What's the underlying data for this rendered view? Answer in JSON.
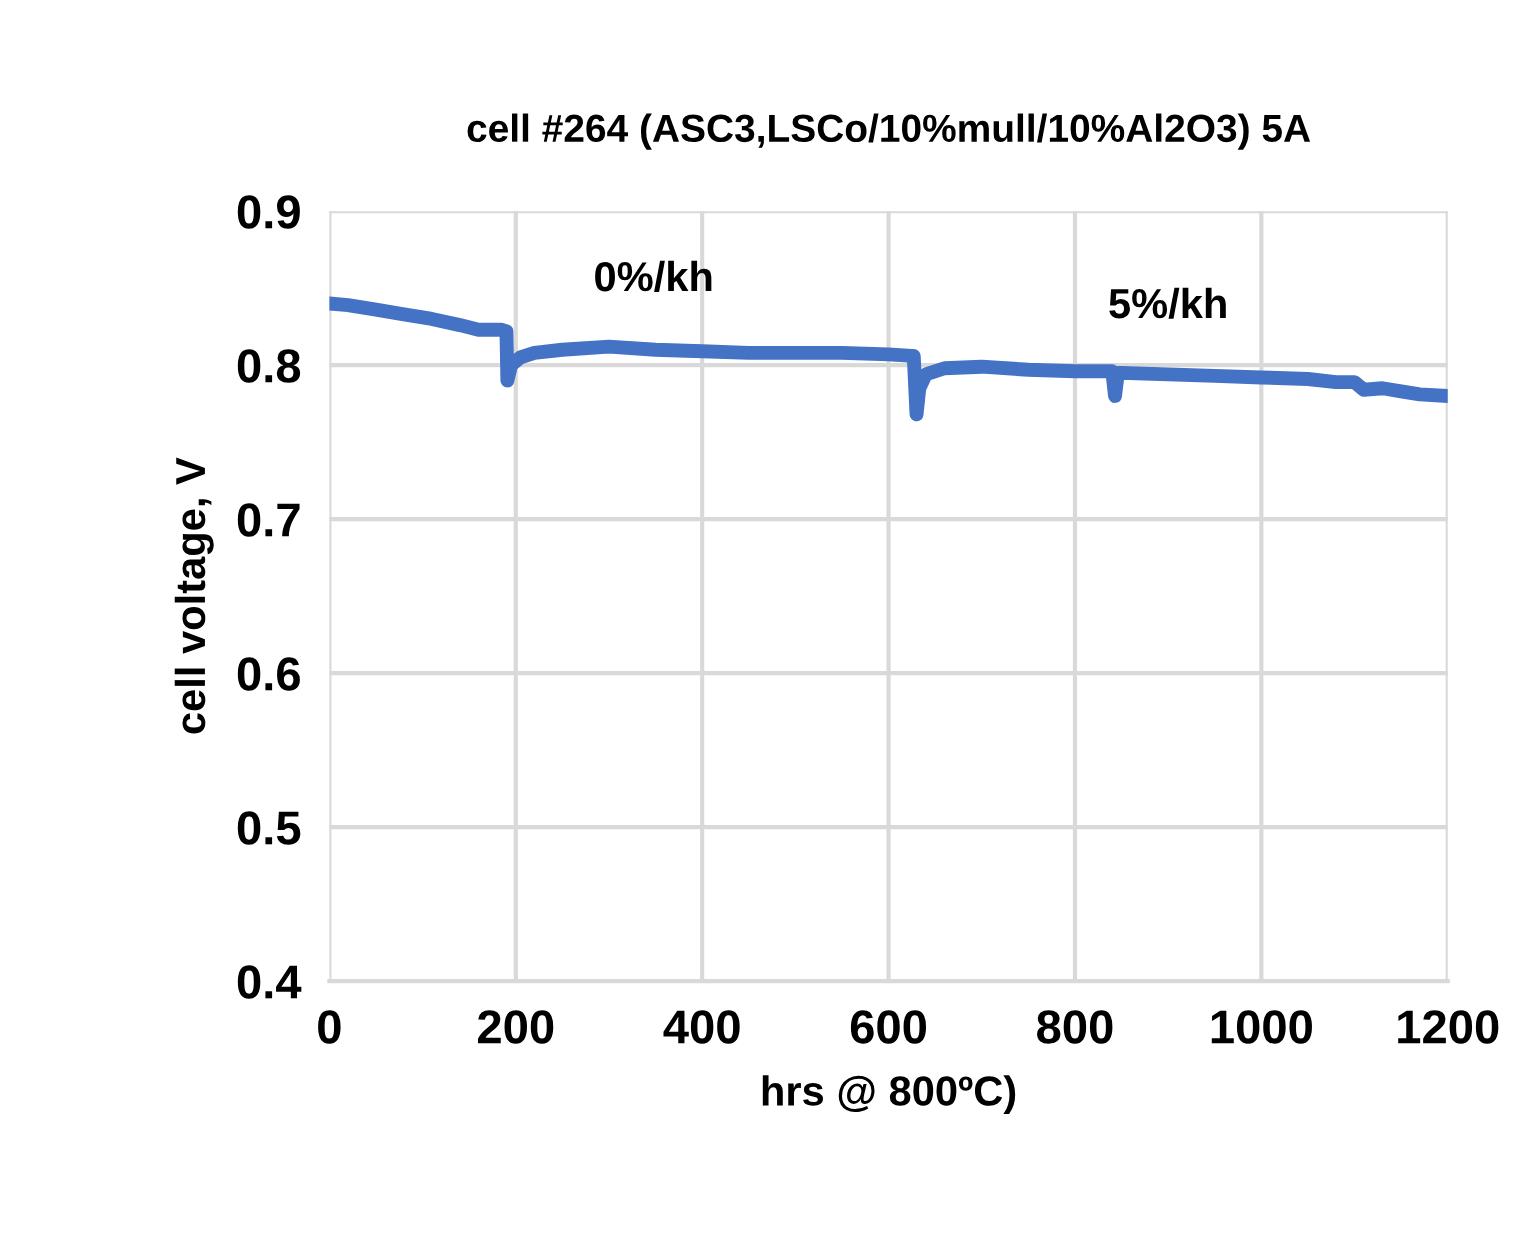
{
  "chart_data": {
    "type": "line",
    "title": "cell #264 (ASC3,LSCo/10%mull/10%Al2O3) 5A",
    "xlabel": "hrs @ 800ºC)",
    "ylabel": "cell voltage, V",
    "series": [
      {
        "color": "#4472c4",
        "x": [
          0,
          20,
          50,
          80,
          110,
          140,
          160,
          185,
          190,
          191,
          195,
          205,
          220,
          250,
          300,
          350,
          400,
          450,
          500,
          550,
          600,
          625,
          627,
          630,
          633,
          640,
          660,
          700,
          750,
          800,
          840,
          843,
          846,
          850,
          900,
          950,
          1000,
          1050,
          1080,
          1100,
          1110,
          1130,
          1150,
          1170,
          1200
        ],
        "values": [
          0.84,
          0.839,
          0.836,
          0.833,
          0.83,
          0.826,
          0.823,
          0.823,
          0.822,
          0.79,
          0.8,
          0.805,
          0.808,
          0.81,
          0.812,
          0.81,
          0.809,
          0.808,
          0.808,
          0.808,
          0.807,
          0.806,
          0.806,
          0.768,
          0.785,
          0.794,
          0.798,
          0.799,
          0.797,
          0.796,
          0.796,
          0.78,
          0.795,
          0.795,
          0.794,
          0.793,
          0.792,
          0.791,
          0.789,
          0.789,
          0.784,
          0.785,
          0.783,
          0.781,
          0.78
        ]
      }
    ],
    "xlim": [
      0,
      1200
    ],
    "xticks": [
      0,
      200,
      400,
      600,
      800,
      1000,
      1200
    ],
    "ylim": [
      0.4,
      0.9
    ],
    "yticks": [
      0.4,
      0.5,
      0.6,
      0.7,
      0.8,
      0.9
    ],
    "grid": true,
    "marker": "none",
    "line_style": "solid",
    "annotations": [
      "0%/kh",
      "5%/kh"
    ]
  }
}
